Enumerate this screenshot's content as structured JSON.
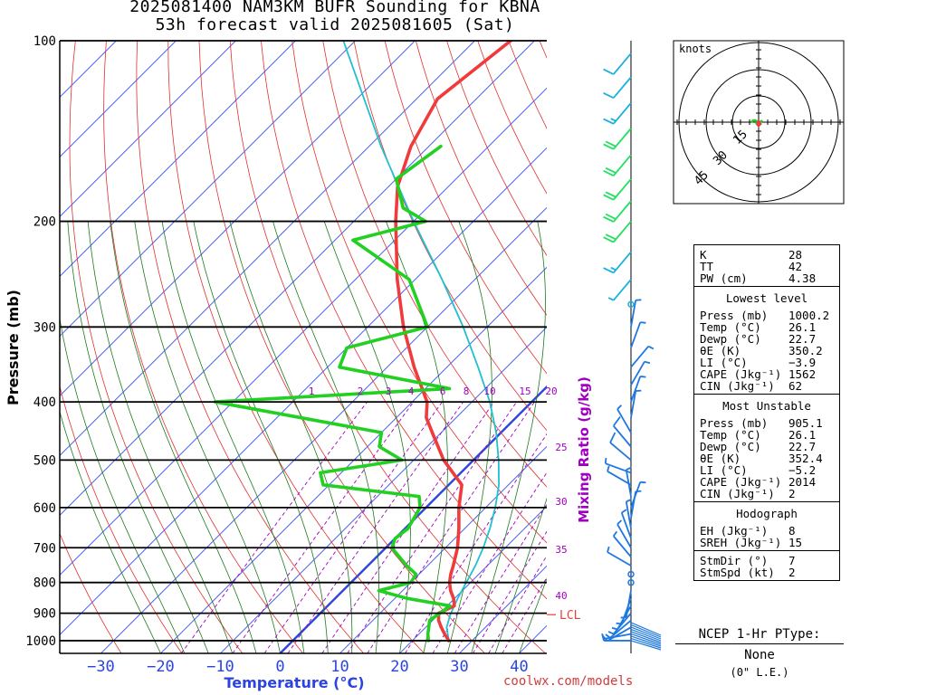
{
  "title": {
    "line1": "2025081400 NAM3KM BUFR Sounding for KBNA",
    "line2": "53h forecast valid 2025081605 (Sat)"
  },
  "colors": {
    "isotherm": "#1f3cff",
    "dry_adiabat": "#e03030",
    "moist_adiabat": "#1c7a1c",
    "mixing_ratio": "#a000c0",
    "temperature": "#ef3b3b",
    "dewpoint": "#22d022",
    "parcel": "#20c0d0",
    "freezing_line": "#2b44e0",
    "wind_barb_low": "#1e78e0",
    "wind_barb_mid": "#22e060",
    "wind_barb_high": "#1ab0e0",
    "footer": "#d13b3b"
  },
  "chart_data": {
    "type": "line",
    "xlabel": "Temperature (°C)",
    "ylabel": "Pressure (mb)",
    "mixing_ratio_label": "Mixing Ratio (g/kg)",
    "x_ticks": [
      "−30",
      "−20",
      "−10",
      "0",
      "10",
      "20",
      "30",
      "40"
    ],
    "y_ticks": [
      "100",
      "200",
      "300",
      "400",
      "500",
      "600",
      "700",
      "800",
      "900",
      "1000"
    ],
    "ylim": [
      1050,
      100
    ],
    "y_scale": "log",
    "grid": true,
    "mixing_ratio_values": [
      "1",
      "2",
      "3",
      "4",
      "6",
      "8",
      "10",
      "15",
      "20",
      "25",
      "30",
      "35",
      "40"
    ],
    "lcl_label": "LCL",
    "lcl_pressure": 905,
    "series": [
      {
        "name": "Temperature",
        "pressure": [
          1000,
          975,
          950,
          925,
          900,
          875,
          850,
          825,
          800,
          775,
          750,
          700,
          650,
          600,
          550,
          500,
          450,
          425,
          400,
          350,
          300,
          250,
          200,
          175,
          150,
          125,
          100
        ],
        "values": [
          26.1,
          24.3,
          22.6,
          21.0,
          19.8,
          21.2,
          19.8,
          18.0,
          16.5,
          15.3,
          14.3,
          12.0,
          9.0,
          5.5,
          2.2,
          -5.0,
          -11.5,
          -15.0,
          -17.5,
          -25.5,
          -34.0,
          -43.0,
          -53.0,
          -58.5,
          -63.0,
          -66.5,
          -64.0
        ]
      },
      {
        "name": "Dewpoint",
        "pressure": [
          1000,
          975,
          950,
          925,
          900,
          875,
          850,
          825,
          800,
          775,
          750,
          700,
          675,
          650,
          600,
          575,
          550,
          525,
          500,
          475,
          450,
          400,
          380,
          350,
          325,
          300,
          250,
          215,
          200,
          190,
          170,
          150
        ],
        "values": [
          22.7,
          21.5,
          20.5,
          19.5,
          20.0,
          20.5,
          12.0,
          6.0,
          10.0,
          9.5,
          6.5,
          1.0,
          0.0,
          0.5,
          -1.0,
          -3.0,
          -21.0,
          -23.5,
          -12.0,
          -18.0,
          -20.0,
          -53.0,
          -16.0,
          -38.0,
          -40.0,
          -30.0,
          -41.0,
          -57.0,
          -48.0,
          -54.0,
          -60.0,
          -58.0
        ]
      },
      {
        "name": "Parcel",
        "pressure": [
          1000,
          950,
          905,
          850,
          800,
          750,
          700,
          650,
          600,
          550,
          500,
          450,
          400,
          350,
          300,
          250,
          200,
          150,
          100
        ],
        "values": [
          26.1,
          23.5,
          22.0,
          20.5,
          19.3,
          18.0,
          16.3,
          14.2,
          11.6,
          8.4,
          4.2,
          -0.8,
          -7.0,
          -14.8,
          -24.0,
          -35.5,
          -50.0,
          -68.0,
          -92.0
        ]
      }
    ]
  },
  "wind_barbs": [
    {
      "p": 1000,
      "dir": 270,
      "spd": 5
    },
    {
      "p": 975,
      "dir": 260,
      "spd": 5
    },
    {
      "p": 950,
      "dir": 240,
      "spd": 5
    },
    {
      "p": 925,
      "dir": 230,
      "spd": 5
    },
    {
      "p": 900,
      "dir": 220,
      "spd": 5
    },
    {
      "p": 875,
      "dir": 210,
      "spd": 5
    },
    {
      "p": 850,
      "dir": 200,
      "spd": 5
    },
    {
      "p": 825,
      "dir": 190,
      "spd": 5
    },
    {
      "p": 800,
      "dir": 0,
      "spd": 0
    },
    {
      "p": 775,
      "dir": 0,
      "spd": 0
    },
    {
      "p": 750,
      "dir": 300,
      "spd": 5
    },
    {
      "p": 725,
      "dir": 320,
      "spd": 5
    },
    {
      "p": 700,
      "dir": 330,
      "spd": 5
    },
    {
      "p": 675,
      "dir": 340,
      "spd": 5
    },
    {
      "p": 650,
      "dir": 350,
      "spd": 5
    },
    {
      "p": 625,
      "dir": 10,
      "spd": 5
    },
    {
      "p": 600,
      "dir": 20,
      "spd": 5
    },
    {
      "p": 575,
      "dir": 350,
      "spd": 5
    },
    {
      "p": 550,
      "dir": 300,
      "spd": 5
    },
    {
      "p": 525,
      "dir": 290,
      "spd": 5
    },
    {
      "p": 500,
      "dir": 310,
      "spd": 10
    },
    {
      "p": 475,
      "dir": 320,
      "spd": 10
    },
    {
      "p": 450,
      "dir": 330,
      "spd": 5
    },
    {
      "p": 425,
      "dir": 10,
      "spd": 5
    },
    {
      "p": 400,
      "dir": 20,
      "spd": 5
    },
    {
      "p": 375,
      "dir": 30,
      "spd": 5
    },
    {
      "p": 350,
      "dir": 40,
      "spd": 5
    },
    {
      "p": 325,
      "dir": 20,
      "spd": 5
    },
    {
      "p": 300,
      "dir": 10,
      "spd": 5
    },
    {
      "p": 275,
      "dir": 0,
      "spd": 0
    },
    {
      "p": 250,
      "dir": 220,
      "spd": 5
    },
    {
      "p": 225,
      "dir": 220,
      "spd": 15
    },
    {
      "p": 200,
      "dir": 220,
      "spd": 20
    },
    {
      "p": 185,
      "dir": 220,
      "spd": 20
    },
    {
      "p": 170,
      "dir": 220,
      "spd": 20
    },
    {
      "p": 155,
      "dir": 220,
      "spd": 20
    },
    {
      "p": 140,
      "dir": 220,
      "spd": 20
    },
    {
      "p": 127,
      "dir": 220,
      "spd": 15
    },
    {
      "p": 115,
      "dir": 220,
      "spd": 10
    },
    {
      "p": 105,
      "dir": 220,
      "spd": 10
    }
  ],
  "hodograph": {
    "units_label": "knots",
    "ring_labels": [
      "15",
      "30",
      "45"
    ],
    "trace_points": [
      [
        -4,
        0
      ],
      [
        -3,
        1
      ],
      [
        -2,
        1
      ],
      [
        -1,
        0.5
      ],
      [
        1,
        0
      ],
      [
        2,
        1
      ],
      [
        1,
        0
      ],
      [
        -1,
        -1
      ],
      [
        0,
        -2
      ],
      [
        1,
        -1
      ],
      [
        0,
        0
      ]
    ]
  },
  "stats": {
    "k_label": "K",
    "k_value": "28",
    "tt_label": "TT",
    "tt_value": "42",
    "pw_label": "PW (cm)",
    "pw_value": "4.38",
    "lowest_header": "Lowest level",
    "lowest": [
      {
        "label": "Press (mb)",
        "value": "1000.2"
      },
      {
        "label": "Temp (°C)",
        "value": "26.1"
      },
      {
        "label": "Dewp (°C)",
        "value": "22.7"
      },
      {
        "label": "θE (K)",
        "value": "350.2"
      },
      {
        "label": "LI (°C)",
        "value": "−3.9"
      },
      {
        "label": "CAPE (Jkg⁻¹)",
        "value": "1562"
      },
      {
        "label": "CIN (Jkg⁻¹)",
        "value": "62"
      }
    ],
    "unstable_header": "Most Unstable",
    "unstable": [
      {
        "label": "Press (mb)",
        "value": "905.1"
      },
      {
        "label": "Temp (°C)",
        "value": "26.1"
      },
      {
        "label": "Dewp (°C)",
        "value": "22.7"
      },
      {
        "label": "θE (K)",
        "value": "352.4"
      },
      {
        "label": "LI (°C)",
        "value": "−5.2"
      },
      {
        "label": "CAPE (Jkg⁻¹)",
        "value": "2014"
      },
      {
        "label": "CIN (Jkg⁻¹)",
        "value": "2"
      }
    ],
    "hodo_header": "Hodograph",
    "hodo": [
      {
        "label": "EH (Jkg⁻¹)",
        "value": "8"
      },
      {
        "label": "SREH (Jkg⁻¹)",
        "value": "15"
      }
    ],
    "storm": [
      {
        "label": "StmDir (°)",
        "value": "7"
      },
      {
        "label": "StmSpd (kt)",
        "value": "2"
      }
    ]
  },
  "ptype": {
    "title": "NCEP 1-Hr PType:",
    "value": "None",
    "accum": "(0\" L.E.)"
  },
  "footer": "coolwx.com/models"
}
